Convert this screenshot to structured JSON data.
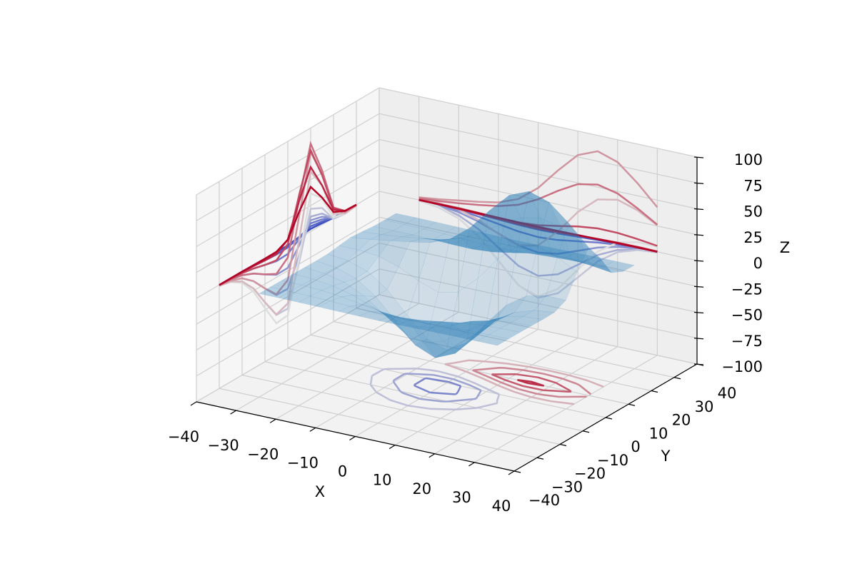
{
  "chart_data": {
    "type": "surface3d",
    "xlabel": "X",
    "ylabel": "Y",
    "zlabel": "Z",
    "xlim": [
      -40,
      40
    ],
    "ylim": [
      -40,
      40
    ],
    "zlim": [
      -100,
      100
    ],
    "xticks": [
      {
        "value": -40,
        "label": "−40"
      },
      {
        "value": -30,
        "label": "−30"
      },
      {
        "value": -20,
        "label": "−20"
      },
      {
        "value": -10,
        "label": "−10"
      },
      0,
      10,
      20,
      30,
      40
    ],
    "yticks": [
      {
        "value": -40,
        "label": "−40"
      },
      {
        "value": -30,
        "label": "−30"
      },
      {
        "value": -20,
        "label": "−20"
      },
      {
        "value": -10,
        "label": "−10"
      },
      0,
      10,
      20,
      30,
      40
    ],
    "zticks": [
      {
        "value": -100,
        "label": "−100"
      },
      {
        "value": -75,
        "label": "−75"
      },
      {
        "value": -50,
        "label": "−50"
      },
      {
        "value": -25,
        "label": "−25"
      },
      0,
      25,
      50,
      75,
      100
    ],
    "grid": true,
    "surface_color": "#1f77b4",
    "alpha": 0.3,
    "colormap": [
      "#3b4cc0",
      "#dddddd",
      "#b40426"
    ],
    "contour_levels": [
      -60,
      -40,
      -20,
      20,
      40,
      60,
      80
    ],
    "x": [
      -30,
      -25,
      -20,
      -15,
      -10,
      -5,
      0,
      5,
      10,
      15,
      20,
      25,
      30
    ],
    "y": [
      -30,
      -25,
      -20,
      -15,
      -10,
      -5,
      0,
      5,
      10,
      15,
      20,
      25,
      30
    ],
    "z": [
      [
        0,
        0,
        -0.1,
        -0.3,
        -0.5,
        -0.8,
        -0.9,
        -0.8,
        -0.5,
        -0.3,
        -0.1,
        0,
        0
      ],
      [
        0,
        -0.2,
        -0.5,
        -1.1,
        -2.1,
        -3.1,
        -3.5,
        -3.1,
        -2.1,
        -1.1,
        -0.5,
        -0.2,
        0
      ],
      [
        -0.1,
        -0.5,
        -1.5,
        -3.5,
        -6.5,
        -9.5,
        -10.8,
        -9.5,
        -6.5,
        -3.5,
        -1.5,
        -0.5,
        -0.1
      ],
      [
        -0.3,
        -1.1,
        -3.5,
        -8.4,
        -15.7,
        -22.8,
        -25.8,
        -22.8,
        -15.7,
        -8.4,
        -3.5,
        -1.1,
        -0.3
      ],
      [
        -0.5,
        -2.1,
        -6.5,
        -15.7,
        -29.3,
        -42.6,
        -48.3,
        -42.6,
        -29.2,
        -15.6,
        -6.5,
        -2.1,
        -0.5
      ],
      [
        -0.7,
        -3.0,
        -9.3,
        -22.5,
        -42.1,
        -61.3,
        -69.3,
        -60.9,
        -41.4,
        -21.7,
        -8.6,
        -2.4,
        -0.3
      ],
      [
        -0.5,
        -2.5,
        -8.8,
        -22.3,
        -42.4,
        -61.5,
        -68.1,
        -56.7,
        -33.9,
        -12.3,
        0.7,
        5.2,
        5.0
      ],
      [
        1.1,
        1.1,
        -0.8,
        -6.8,
        -16.1,
        -23.0,
        -18.7,
        -1.1,
        21.8,
        38.1,
        42.0,
        36.0,
        25.7
      ],
      [
        2.5,
        4.9,
        7.8,
        10.8,
        14.3,
        21.8,
        36.7,
        57.8,
        76.8,
        84.7,
        78.4,
        62.2,
        43.1
      ],
      [
        1.6,
        3.1,
        5.2,
        7.7,
        10.8,
        16.2,
        25.7,
        38.1,
        48.7,
        52.5,
        48.0,
        37.9,
        26.2
      ],
      [
        0.3,
        0.5,
        0.5,
        0.1,
        -0.6,
        -0.8,
        0.7,
        4.1,
        7.8,
        10.1,
        10.0,
        8.2,
        5.8
      ],
      [
        0,
        -0.1,
        -0.3,
        -0.8,
        -1.6,
        -2.4,
        -2.6,
        -2.0,
        -0.9,
        0,
        0.5,
        0.6,
        0.4
      ],
      [
        0,
        0,
        -0.1,
        -0.3,
        -0.5,
        -0.8,
        -0.9,
        -0.8,
        -0.5,
        -0.3,
        -0.1,
        0,
        0
      ]
    ]
  }
}
